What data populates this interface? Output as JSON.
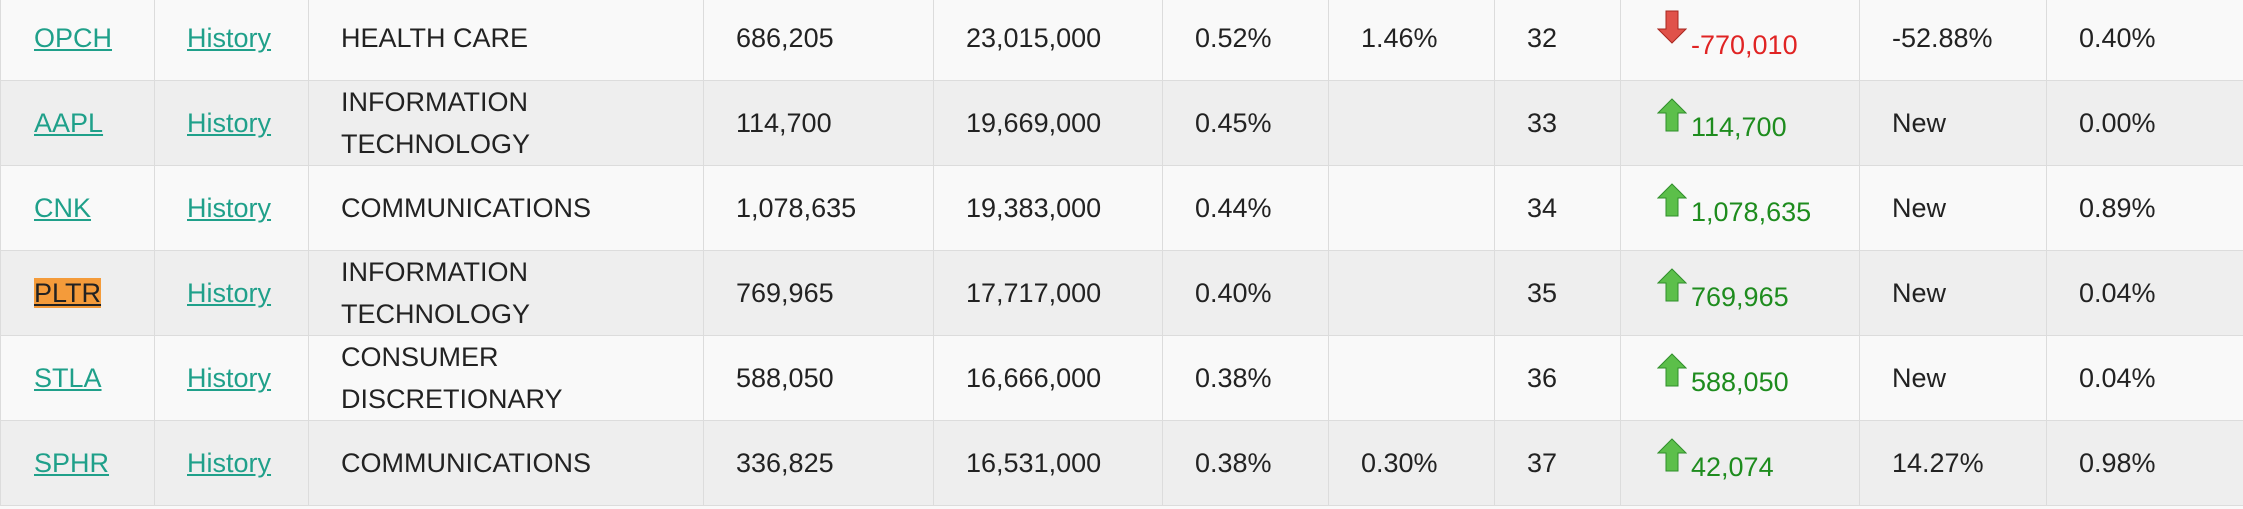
{
  "table": {
    "link_text": "History",
    "rows": [
      {
        "ticker": "OPCH",
        "sector": "HEALTH CARE",
        "shares": "686,205",
        "value": "23,015,000",
        "pct": "0.52%",
        "prev_pct": "1.46%",
        "rank": "32",
        "direction": "down",
        "change": "-770,010",
        "change_pct": "-52.88%",
        "ownership": "0.40%",
        "highlight": false
      },
      {
        "ticker": "AAPL",
        "sector": "INFORMATION TECHNOLOGY",
        "shares": "114,700",
        "value": "19,669,000",
        "pct": "0.45%",
        "prev_pct": null,
        "rank": "33",
        "direction": "up",
        "change": "114,700",
        "change_pct": "New",
        "ownership": "0.00%",
        "highlight": false
      },
      {
        "ticker": "CNK",
        "sector": "COMMUNICATIONS",
        "shares": "1,078,635",
        "value": "19,383,000",
        "pct": "0.44%",
        "prev_pct": null,
        "rank": "34",
        "direction": "up",
        "change": "1,078,635",
        "change_pct": "New",
        "ownership": "0.89%",
        "highlight": false
      },
      {
        "ticker": "PLTR",
        "sector": "INFORMATION TECHNOLOGY",
        "shares": "769,965",
        "value": "17,717,000",
        "pct": "0.40%",
        "prev_pct": null,
        "rank": "35",
        "direction": "up",
        "change": "769,965",
        "change_pct": "New",
        "ownership": "0.04%",
        "highlight": true
      },
      {
        "ticker": "STLA",
        "sector": "CONSUMER DISCRETIONARY",
        "shares": "588,050",
        "value": "16,666,000",
        "pct": "0.38%",
        "prev_pct": null,
        "rank": "36",
        "direction": "up",
        "change": "588,050",
        "change_pct": "New",
        "ownership": "0.04%",
        "highlight": false
      },
      {
        "ticker": "SPHR",
        "sector": "COMMUNICATIONS",
        "shares": "336,825",
        "value": "16,531,000",
        "pct": "0.38%",
        "prev_pct": "0.30%",
        "rank": "37",
        "direction": "up",
        "change": "42,074",
        "change_pct": "14.27%",
        "ownership": "0.98%",
        "highlight": false
      }
    ]
  }
}
